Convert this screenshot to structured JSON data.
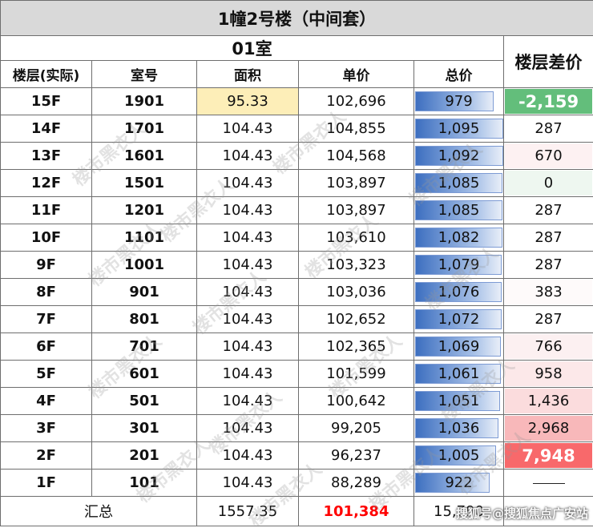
{
  "title": "1幢2号楼（中间套）",
  "room_header": "01室",
  "diff_header": "楼层差价",
  "columns": [
    "楼层(实际)",
    "室号",
    "面积",
    "单价",
    "总价"
  ],
  "rows": [
    {
      "floor": "15F",
      "room": "1901",
      "area": "95.33",
      "unit_price": "102,696",
      "total": "979",
      "total_value": 979,
      "diff": "-2,159",
      "diff_color": "#63be7b",
      "diff_text_color": "#ffffff"
    },
    {
      "floor": "14F",
      "room": "1701",
      "area": "104.43",
      "unit_price": "104,855",
      "total": "1,095",
      "total_value": 1095,
      "diff": "287",
      "diff_color": "#ffffff",
      "diff_text_color": "#111111"
    },
    {
      "floor": "13F",
      "room": "1601",
      "area": "104.43",
      "unit_price": "104,568",
      "total": "1,092",
      "total_value": 1092,
      "diff": "670",
      "diff_color": "#fdf1f2",
      "diff_text_color": "#111111"
    },
    {
      "floor": "12F",
      "room": "1501",
      "area": "104.43",
      "unit_price": "103,897",
      "total": "1,085",
      "total_value": 1085,
      "diff": "0",
      "diff_color": "#eef7f0",
      "diff_text_color": "#111111"
    },
    {
      "floor": "11F",
      "room": "1201",
      "area": "104.43",
      "unit_price": "103,897",
      "total": "1,085",
      "total_value": 1085,
      "diff": "287",
      "diff_color": "#ffffff",
      "diff_text_color": "#111111"
    },
    {
      "floor": "10F",
      "room": "1101",
      "area": "104.43",
      "unit_price": "103,610",
      "total": "1,082",
      "total_value": 1082,
      "diff": "287",
      "diff_color": "#ffffff",
      "diff_text_color": "#111111"
    },
    {
      "floor": "9F",
      "room": "1001",
      "area": "104.43",
      "unit_price": "103,323",
      "total": "1,079",
      "total_value": 1079,
      "diff": "287",
      "diff_color": "#ffffff",
      "diff_text_color": "#111111"
    },
    {
      "floor": "8F",
      "room": "901",
      "area": "104.43",
      "unit_price": "103,036",
      "total": "1,076",
      "total_value": 1076,
      "diff": "383",
      "diff_color": "#fefafa",
      "diff_text_color": "#111111"
    },
    {
      "floor": "7F",
      "room": "801",
      "area": "104.43",
      "unit_price": "102,652",
      "total": "1,072",
      "total_value": 1072,
      "diff": "287",
      "diff_color": "#ffffff",
      "diff_text_color": "#111111"
    },
    {
      "floor": "6F",
      "room": "701",
      "area": "104.43",
      "unit_price": "102,365",
      "total": "1,069",
      "total_value": 1069,
      "diff": "766",
      "diff_color": "#fcf0f1",
      "diff_text_color": "#111111"
    },
    {
      "floor": "5F",
      "room": "601",
      "area": "104.43",
      "unit_price": "101,599",
      "total": "1,061",
      "total_value": 1061,
      "diff": "958",
      "diff_color": "#fce8e9",
      "diff_text_color": "#111111"
    },
    {
      "floor": "4F",
      "room": "501",
      "area": "104.43",
      "unit_price": "100,642",
      "total": "1,051",
      "total_value": 1051,
      "diff": "1,436",
      "diff_color": "#fbdcdd",
      "diff_text_color": "#111111"
    },
    {
      "floor": "3F",
      "room": "301",
      "area": "104.43",
      "unit_price": "99,205",
      "total": "1,036",
      "total_value": 1036,
      "diff": "2,968",
      "diff_color": "#f8b8ba",
      "diff_text_color": "#111111"
    },
    {
      "floor": "2F",
      "room": "201",
      "area": "104.43",
      "unit_price": "96,237",
      "total": "1,005",
      "total_value": 1005,
      "diff": "7,948",
      "diff_color": "#f8696b",
      "diff_text_color": "#ffffff"
    },
    {
      "floor": "1F",
      "room": "101",
      "area": "104.43",
      "unit_price": "88,289",
      "total": "922",
      "total_value": 922,
      "diff": "",
      "diff_color": "#ffffff",
      "diff_text_color": "#111111"
    }
  ],
  "summary": {
    "label": "汇总",
    "area": "1557.35",
    "unit_price": "101,384",
    "total": "15,790"
  },
  "watermark": "楼市黑衣人",
  "footer_watermark": "搜狐号@搜狐焦点广安站",
  "colors": {
    "title_bg": "#d9d9d9",
    "area_highlight": "#fdeeb8",
    "bar_blue": "#3d6fc0",
    "summary_red": "#ff0000"
  }
}
